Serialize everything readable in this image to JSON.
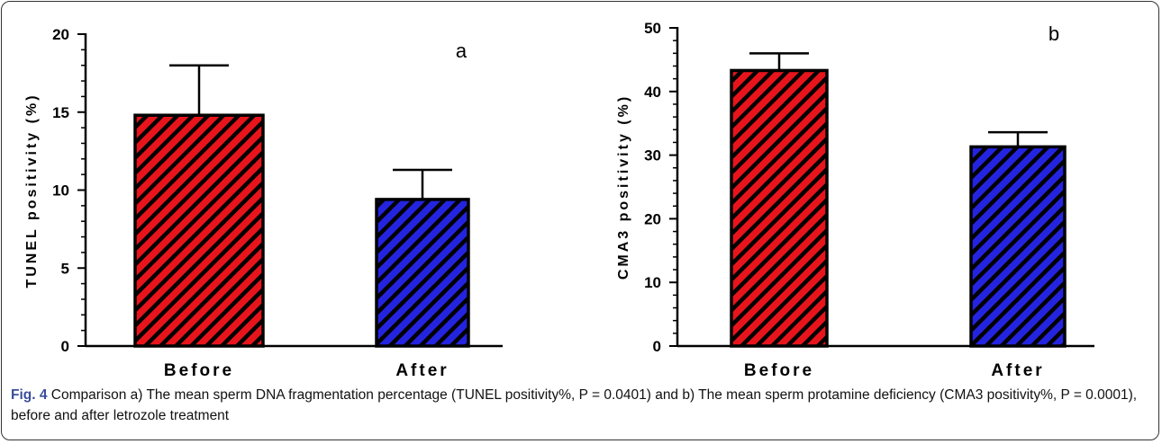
{
  "chart_data": [
    {
      "type": "bar",
      "panel_letter": "a",
      "categories": [
        "Before",
        "After"
      ],
      "values": [
        14.8,
        9.4
      ],
      "errors": [
        3.2,
        1.9
      ],
      "colors": [
        "#e8141c",
        "#2424e0"
      ],
      "ylabel": "TUNEL positivity (%)",
      "ylim": [
        0,
        20
      ],
      "yticks": [
        "0",
        "5",
        "10",
        "15",
        "20"
      ],
      "hatch": "diagonal"
    },
    {
      "type": "bar",
      "panel_letter": "b",
      "categories": [
        "Before",
        "After"
      ],
      "values": [
        43.3,
        31.3
      ],
      "errors": [
        2.7,
        2.3
      ],
      "colors": [
        "#e8141c",
        "#2424e0"
      ],
      "ylabel": "CMA3 positivity (%)",
      "ylim": [
        0,
        50
      ],
      "yticks": [
        "0",
        "10",
        "20",
        "30",
        "40",
        "50"
      ],
      "hatch": "diagonal"
    }
  ],
  "caption": {
    "fig_label": "Fig. 4",
    "text": " Comparison a) The mean sperm DNA fragmentation percentage (TUNEL positivity%, P = 0.0401) and b) The mean sperm protamine deficiency (CMA3 positivity%, P = 0.0001), before and after letrozole treatment"
  }
}
